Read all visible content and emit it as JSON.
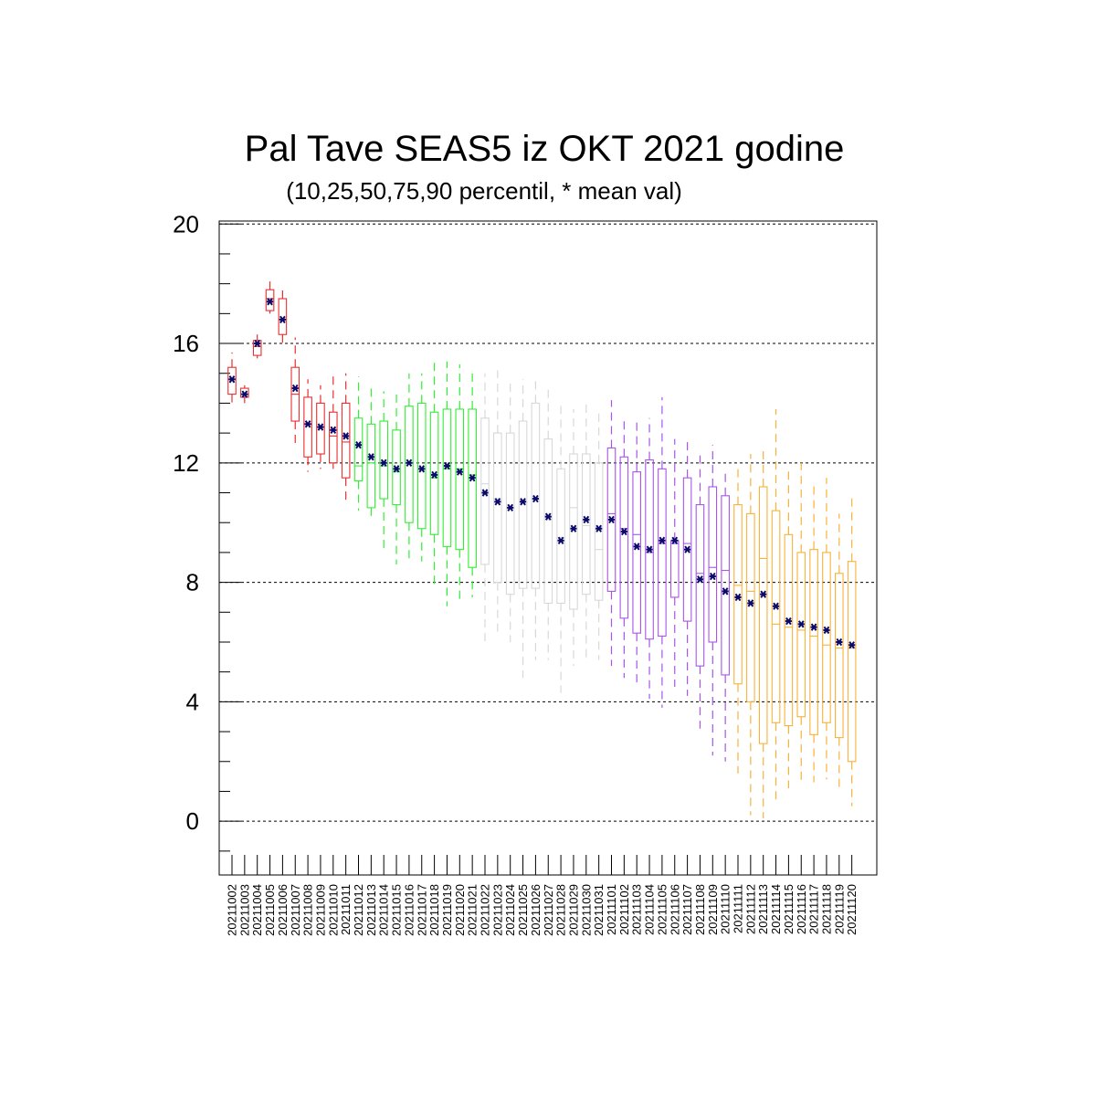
{
  "chart_data": {
    "type": "box",
    "title": "Pal Tave SEAS5 iz OKT 2021 godine",
    "subtitle": "(10,25,50,75,90 percentil, * mean val)",
    "ylim": [
      -1.8,
      20.1
    ],
    "y_ticks": [
      "0",
      "4",
      "8",
      "12",
      "16",
      "20"
    ],
    "grid": "dashed horizontal at major ticks",
    "colors": {
      "red": "#e8302f",
      "green": "#33ee33",
      "gray": "#d8d8d8",
      "purple": "#a855e8",
      "orange": "#f8b23a",
      "mean_marker": "#0a0a6a"
    },
    "categories": [
      "20211002",
      "20211003",
      "20211004",
      "20211005",
      "20211006",
      "20211007",
      "20211008",
      "20211009",
      "20211010",
      "20211011",
      "20211012",
      "20211013",
      "20211014",
      "20211015",
      "20211016",
      "20211017",
      "20211018",
      "20211019",
      "20211020",
      "20211021",
      "20211022",
      "20211023",
      "20211024",
      "20211025",
      "20211026",
      "20211027",
      "20211028",
      "20211029",
      "20211030",
      "20211031",
      "20211101",
      "20211102",
      "20211103",
      "20211104",
      "20211105",
      "20211106",
      "20211107",
      "20211108",
      "20211109",
      "20211110",
      "20211111",
      "20211112",
      "20211113",
      "20211114",
      "20211115",
      "20211116",
      "20211117",
      "20211118",
      "20211119",
      "20211120"
    ],
    "group_colors": [
      "red",
      "red",
      "red",
      "red",
      "red",
      "red",
      "red",
      "red",
      "red",
      "red",
      "green",
      "green",
      "green",
      "green",
      "green",
      "green",
      "green",
      "green",
      "green",
      "green",
      "gray",
      "gray",
      "gray",
      "gray",
      "gray",
      "gray",
      "gray",
      "gray",
      "gray",
      "gray",
      "purple",
      "purple",
      "purple",
      "purple",
      "purple",
      "purple",
      "purple",
      "purple",
      "purple",
      "purple",
      "orange",
      "orange",
      "orange",
      "orange",
      "orange",
      "orange",
      "orange",
      "orange",
      "orange",
      "orange"
    ],
    "p10": [
      13.9,
      14.0,
      15.5,
      17.0,
      16.0,
      12.6,
      11.7,
      11.8,
      11.8,
      10.6,
      10.4,
      10.1,
      9.1,
      8.6,
      8.7,
      8.7,
      7.9,
      7.2,
      7.3,
      7.5,
      6.0,
      6.3,
      6.0,
      4.8,
      5.4,
      5.4,
      4.3,
      5.2,
      5.3,
      5.4,
      5.2,
      4.8,
      4.6,
      4.1,
      3.8,
      4.5,
      4.2,
      3.1,
      2.2,
      2.0,
      1.6,
      0.2,
      0.1,
      0.7,
      1.1,
      1.2,
      1.3,
      1.4,
      1.0,
      0.5
    ],
    "p25": [
      14.3,
      14.2,
      15.6,
      17.1,
      16.3,
      13.4,
      12.2,
      12.3,
      12.0,
      11.5,
      11.4,
      10.5,
      10.8,
      10.6,
      10.0,
      9.8,
      9.6,
      9.2,
      9.1,
      8.5,
      8.6,
      8.0,
      7.6,
      7.8,
      7.8,
      7.3,
      7.3,
      7.1,
      7.6,
      7.4,
      7.7,
      6.8,
      6.3,
      6.1,
      6.2,
      7.5,
      6.7,
      5.2,
      6.0,
      4.9,
      4.6,
      4.0,
      2.6,
      3.3,
      3.2,
      3.5,
      2.9,
      3.3,
      2.8,
      2.0
    ],
    "p50": [
      14.8,
      14.3,
      15.9,
      17.5,
      16.8,
      14.3,
      13.3,
      13.2,
      12.9,
      12.7,
      11.9,
      12.0,
      11.9,
      11.7,
      12.0,
      11.8,
      11.5,
      11.8,
      11.8,
      11.6,
      11.3,
      10.8,
      10.5,
      10.7,
      10.8,
      10.1,
      9.5,
      10.5,
      9.9,
      9.1,
      10.3,
      9.8,
      9.6,
      9.0,
      9.3,
      9.3,
      9.3,
      8.3,
      8.5,
      8.4,
      7.9,
      7.7,
      8.8,
      6.6,
      6.5,
      6.4,
      6.2,
      5.9,
      5.8,
      5.8
    ],
    "p75": [
      15.2,
      14.5,
      16.1,
      17.8,
      17.5,
      15.2,
      14.2,
      14.0,
      13.7,
      14.0,
      13.5,
      13.3,
      13.4,
      13.1,
      13.9,
      14.0,
      13.7,
      13.8,
      13.8,
      13.8,
      13.5,
      13.0,
      13.0,
      13.4,
      14.0,
      12.8,
      11.8,
      12.3,
      12.3,
      12.0,
      12.5,
      12.2,
      11.7,
      12.1,
      11.8,
      9.4,
      11.5,
      10.6,
      11.2,
      10.9,
      10.6,
      10.3,
      11.2,
      10.4,
      9.6,
      9.0,
      9.1,
      9.0,
      8.3,
      8.7
    ],
    "p90": [
      15.7,
      14.6,
      16.3,
      18.1,
      17.8,
      16.2,
      14.8,
      14.6,
      15.0,
      15.0,
      14.9,
      14.6,
      14.4,
      14.4,
      15.0,
      15.0,
      15.4,
      15.4,
      15.3,
      15.1,
      15.0,
      15.1,
      14.8,
      14.8,
      14.8,
      14.6,
      14.0,
      13.8,
      14.0,
      13.8,
      14.1,
      13.4,
      13.4,
      13.5,
      14.2,
      12.8,
      12.8,
      12.4,
      12.6,
      11.8,
      11.8,
      12.3,
      12.5,
      13.8,
      11.8,
      12.0,
      11.3,
      11.5,
      10.3,
      10.9
    ],
    "mean": [
      14.8,
      14.3,
      16.0,
      17.4,
      16.8,
      14.5,
      13.3,
      13.2,
      13.1,
      12.9,
      12.6,
      12.2,
      12.0,
      11.8,
      12.0,
      11.8,
      11.6,
      11.9,
      11.7,
      11.5,
      11.0,
      10.7,
      10.5,
      10.7,
      10.8,
      10.2,
      9.4,
      9.8,
      10.1,
      9.8,
      10.1,
      9.7,
      9.2,
      9.1,
      9.4,
      9.4,
      9.1,
      8.1,
      8.2,
      7.7,
      7.5,
      7.3,
      7.6,
      7.2,
      6.7,
      6.6,
      6.5,
      6.4,
      6.0,
      5.9
    ]
  }
}
